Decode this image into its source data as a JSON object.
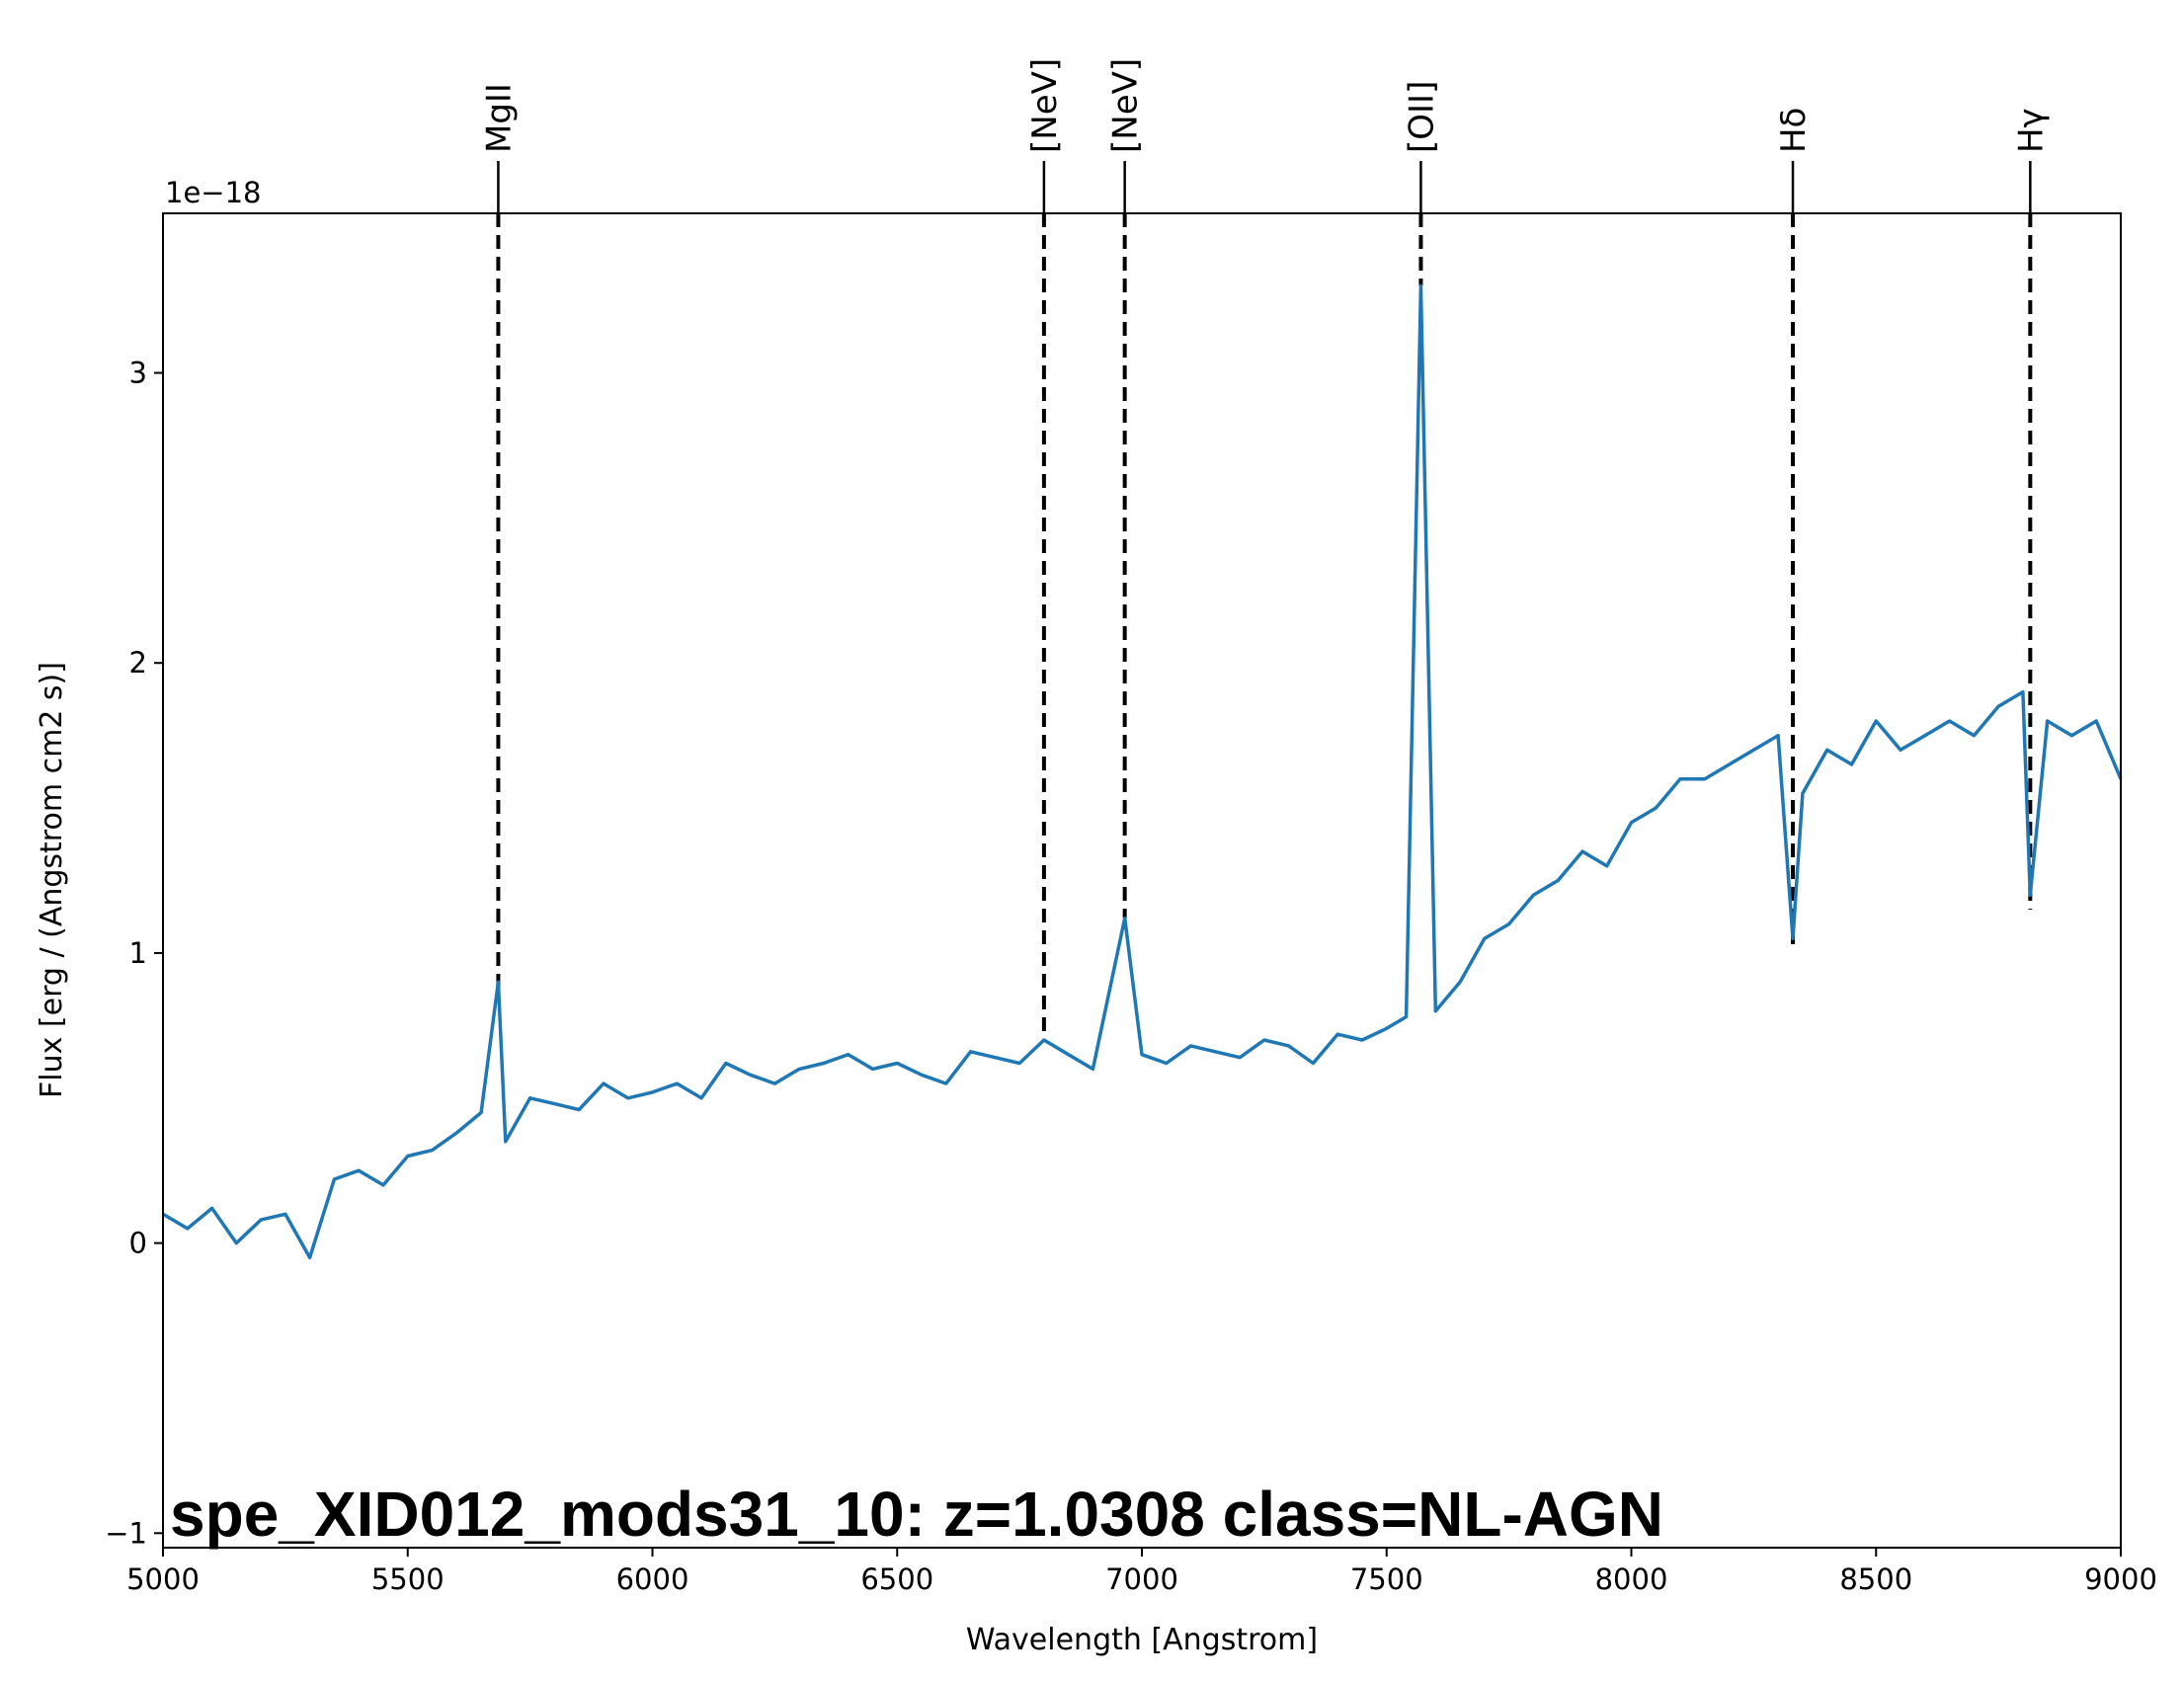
{
  "chart_data": {
    "type": "line",
    "xlabel": "Wavelength [Angstrom]",
    "ylabel": "Flux [erg / (Angstrom cm2 s)]",
    "y_offset_label": "1e−18",
    "xlim": [
      5000,
      9000
    ],
    "ylim": [
      -1.05,
      3.55
    ],
    "x_ticks": [
      5000,
      5500,
      6000,
      6500,
      7000,
      7500,
      8000,
      8500,
      9000
    ],
    "y_ticks": [
      -1,
      0,
      1,
      2,
      3
    ],
    "y_tick_labels": [
      "−1",
      "0",
      "1",
      "2",
      "3"
    ],
    "grid": false,
    "annotation": "spe_XID012_mods31_10: z=1.0308 class=NL-AGN",
    "annotation_color": "#ff0000",
    "series_color": "#1f77b4",
    "marker_color": "#000000",
    "spectral_lines": [
      {
        "label": "MgII",
        "x": 5685,
        "y_bottom": 0.88
      },
      {
        "label": "[NeV]",
        "x": 6800,
        "y_bottom": 0.72
      },
      {
        "label": "[NeV]",
        "x": 6965,
        "y_bottom": 1.12
      },
      {
        "label": "[OII]",
        "x": 7570,
        "y_bottom": 3.3
      },
      {
        "label": "Hδ",
        "x": 8330,
        "y_bottom": 1.02
      },
      {
        "label": "Hγ",
        "x": 8815,
        "y_bottom": 1.15
      }
    ],
    "series": [
      {
        "x": [
          5000,
          5050,
          5100,
          5150,
          5200,
          5250,
          5300,
          5350,
          5400,
          5450,
          5500,
          5550,
          5600,
          5650,
          5685,
          5700,
          5750,
          5800,
          5850,
          5900,
          5950,
          6000,
          6050,
          6100,
          6150,
          6200,
          6250,
          6300,
          6350,
          6400,
          6450,
          6500,
          6550,
          6600,
          6650,
          6700,
          6750,
          6800,
          6850,
          6900,
          6965,
          7000,
          7050,
          7100,
          7150,
          7200,
          7250,
          7300,
          7350,
          7400,
          7450,
          7500,
          7540,
          7570,
          7600,
          7650,
          7700,
          7750,
          7800,
          7850,
          7900,
          7950,
          8000,
          8050,
          8100,
          8150,
          8200,
          8250,
          8300,
          8330,
          8350,
          8400,
          8450,
          8500,
          8550,
          8600,
          8650,
          8700,
          8750,
          8800,
          8815,
          8850,
          8900,
          8950,
          9000
        ],
        "y": [
          0.1,
          0.05,
          0.12,
          0.0,
          0.08,
          0.1,
          -0.05,
          0.22,
          0.25,
          0.2,
          0.3,
          0.32,
          0.38,
          0.45,
          0.9,
          0.35,
          0.5,
          0.48,
          0.46,
          0.55,
          0.5,
          0.52,
          0.55,
          0.5,
          0.62,
          0.58,
          0.55,
          0.6,
          0.62,
          0.65,
          0.6,
          0.62,
          0.58,
          0.55,
          0.66,
          0.64,
          0.62,
          0.7,
          0.65,
          0.6,
          1.12,
          0.65,
          0.62,
          0.68,
          0.66,
          0.64,
          0.7,
          0.68,
          0.62,
          0.72,
          0.7,
          0.74,
          0.78,
          3.3,
          0.8,
          0.9,
          1.05,
          1.1,
          1.2,
          1.25,
          1.35,
          1.3,
          1.45,
          1.5,
          1.6,
          1.6,
          1.65,
          1.7,
          1.75,
          1.05,
          1.55,
          1.7,
          1.65,
          1.8,
          1.7,
          1.75,
          1.8,
          1.75,
          1.85,
          1.9,
          1.2,
          1.8,
          1.75,
          1.8,
          1.6
        ]
      }
    ]
  }
}
